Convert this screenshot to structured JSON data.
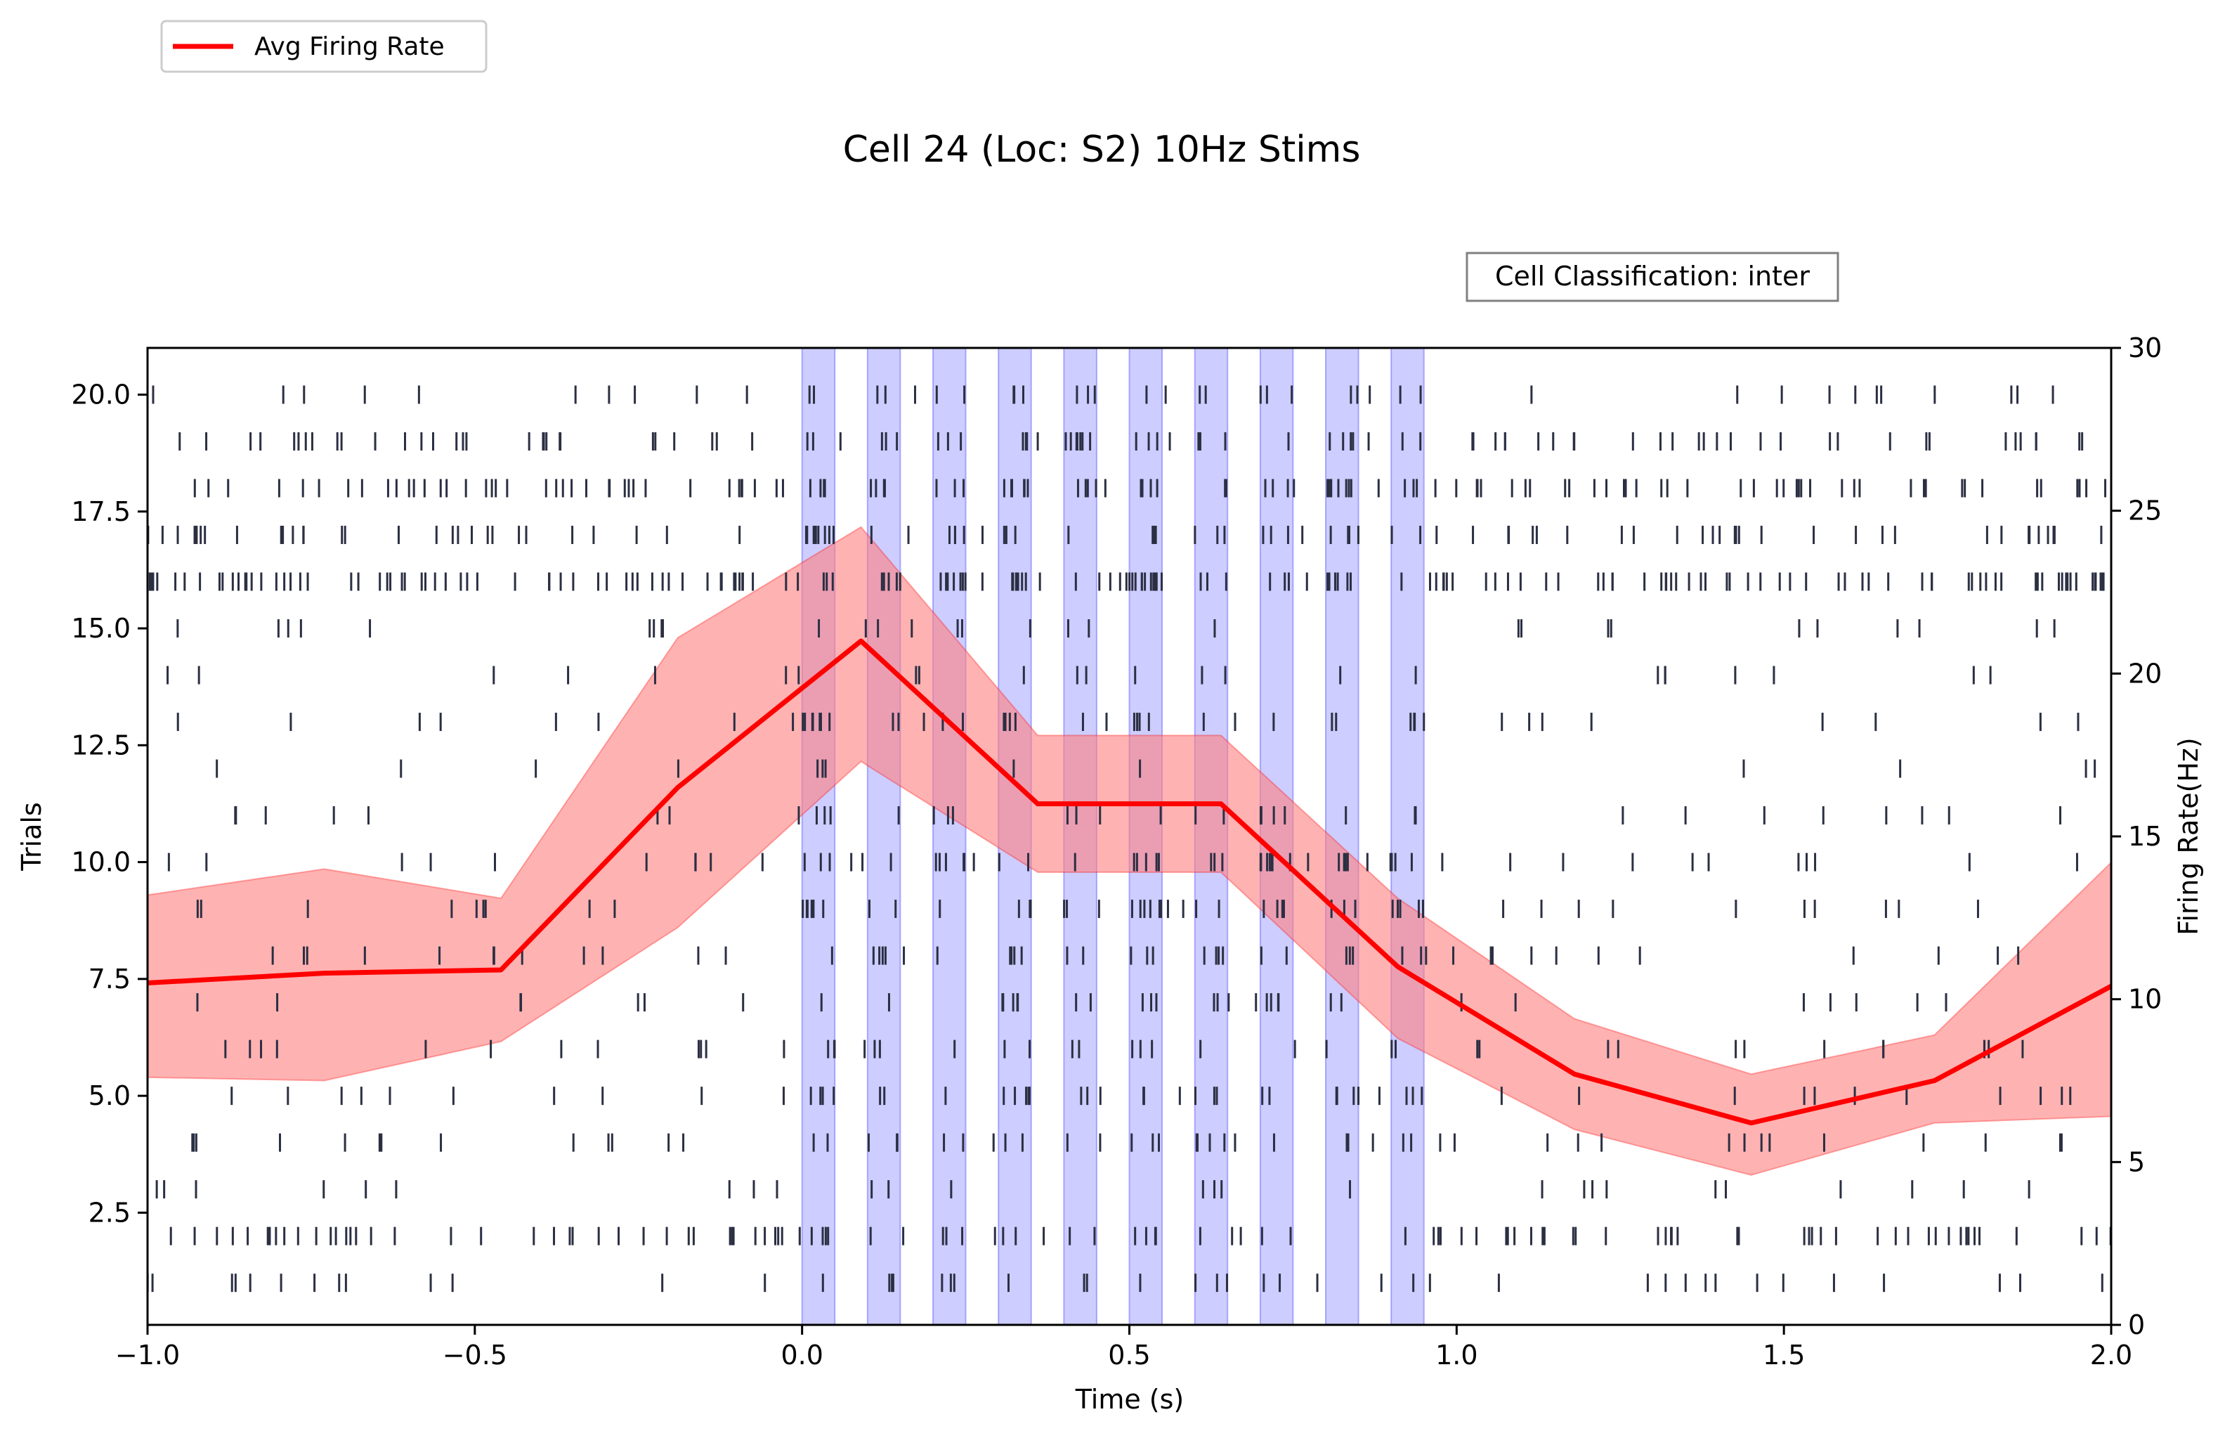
{
  "chart_data": {
    "type": "raster_with_line",
    "title": "Cell 24 (Loc: S2) 10Hz Stims",
    "xlabel": "Time (s)",
    "ylabel_left": "Trials",
    "ylabel_right": "Firing Rate(Hz)",
    "xlim": [
      -1.0,
      2.0
    ],
    "ylim_left": [
      0.1,
      21.0
    ],
    "ylim_right": [
      0,
      30
    ],
    "xticks": [
      "−1.0",
      "−0.5",
      "0.0",
      "0.5",
      "1.0",
      "1.5",
      "2.0"
    ],
    "xtick_values": [
      -1.0,
      -0.5,
      0.0,
      0.5,
      1.0,
      1.5,
      2.0
    ],
    "yticks_left": [
      "2.5",
      "5.0",
      "7.5",
      "10.0",
      "12.5",
      "15.0",
      "17.5",
      "20.0"
    ],
    "ytick_left_values": [
      2.5,
      5.0,
      7.5,
      10.0,
      12.5,
      15.0,
      17.5,
      20.0
    ],
    "yticks_right": [
      "0",
      "5",
      "10",
      "15",
      "20",
      "25",
      "30"
    ],
    "ytick_right_values": [
      0,
      5,
      10,
      15,
      20,
      25,
      30
    ],
    "legend": {
      "label": "Avg Firing Rate",
      "color": "#ff0000",
      "placement": "upper-left-outside"
    },
    "annotation": "Cell Classification: inter",
    "stimulus_windows": [
      [
        0.0,
        0.05
      ],
      [
        0.1,
        0.15
      ],
      [
        0.2,
        0.25
      ],
      [
        0.3,
        0.35
      ],
      [
        0.4,
        0.45
      ],
      [
        0.5,
        0.55
      ],
      [
        0.6,
        0.65
      ],
      [
        0.7,
        0.75
      ],
      [
        0.8,
        0.85
      ],
      [
        0.9,
        0.95
      ]
    ],
    "avg_firing_rate": {
      "x": [
        -1.0,
        -0.73,
        -0.46,
        -0.19,
        0.09,
        0.36,
        0.64,
        0.91,
        1.18,
        1.45,
        1.73,
        2.0
      ],
      "y": [
        10.5,
        10.8,
        10.9,
        16.5,
        21.0,
        16.0,
        16.0,
        11.0,
        7.7,
        6.2,
        7.5,
        10.4
      ],
      "lower": [
        7.6,
        7.5,
        8.7,
        12.2,
        17.3,
        13.9,
        13.9,
        8.8,
        6.0,
        4.6,
        6.2,
        6.4
      ],
      "upper": [
        13.2,
        14.0,
        13.1,
        21.1,
        24.5,
        18.1,
        18.1,
        13.1,
        9.4,
        7.7,
        8.9,
        14.2
      ]
    },
    "raster": {
      "trial_density": [
        {
          "trial": 1,
          "base": 10,
          "stim": 15
        },
        {
          "trial": 2,
          "base": 30,
          "stim": 20
        },
        {
          "trial": 3,
          "base": 7,
          "stim": 6
        },
        {
          "trial": 4,
          "base": 10,
          "stim": 22
        },
        {
          "trial": 5,
          "base": 8,
          "stim": 25
        },
        {
          "trial": 6,
          "base": 9,
          "stim": 16
        },
        {
          "trial": 7,
          "base": 5,
          "stim": 18
        },
        {
          "trial": 8,
          "base": 9,
          "stim": 22
        },
        {
          "trial": 9,
          "base": 7,
          "stim": 30
        },
        {
          "trial": 10,
          "base": 8,
          "stim": 32
        },
        {
          "trial": 11,
          "base": 6,
          "stim": 16
        },
        {
          "trial": 12,
          "base": 3,
          "stim": 4
        },
        {
          "trial": 13,
          "base": 6,
          "stim": 25
        },
        {
          "trial": 14,
          "base": 5,
          "stim": 8
        },
        {
          "trial": 15,
          "base": 7,
          "stim": 8
        },
        {
          "trial": 16,
          "base": 45,
          "stim": 45
        },
        {
          "trial": 17,
          "base": 22,
          "stim": 30
        },
        {
          "trial": 18,
          "base": 30,
          "stim": 35
        },
        {
          "trial": 19,
          "base": 22,
          "stim": 28
        },
        {
          "trial": 20,
          "base": 8,
          "stim": 20
        }
      ]
    },
    "colors": {
      "stim": "#6666ff",
      "spike": "#2b2f42",
      "line": "#ff0000",
      "band": "#ff7f7f"
    }
  }
}
